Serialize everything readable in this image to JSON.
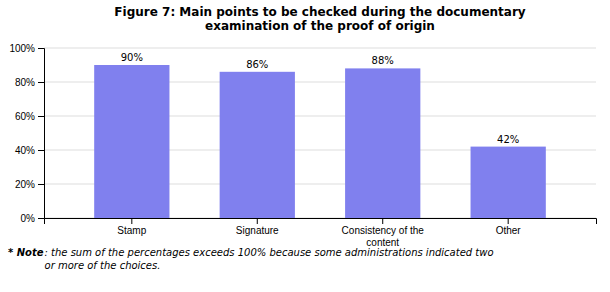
{
  "chart_data": {
    "type": "bar",
    "title": "Figure 7: Main points to be checked during the documentary\nexamination of the proof of origin",
    "categories": [
      "Stamp",
      "Signature",
      "Consistency of the\ncontent",
      "Other"
    ],
    "values": [
      90,
      86,
      88,
      42
    ],
    "value_labels": [
      "90%",
      "86%",
      "88%",
      "42%"
    ],
    "data_labels": true,
    "color": "#8080EE",
    "ylim": [
      0,
      100
    ],
    "yticks": [
      {
        "value": 0,
        "label": "0%"
      },
      {
        "value": 20,
        "label": "20%"
      },
      {
        "value": 40,
        "label": "40%"
      },
      {
        "value": 60,
        "label": "60%"
      },
      {
        "value": 80,
        "label": "80%"
      },
      {
        "value": 100,
        "label": "100%"
      }
    ],
    "grid": true,
    "annotations": [
      "* Note",
      ": the sum of the percentages exceeds 100% because some administrations indicated two\nor more of the choices."
    ]
  }
}
